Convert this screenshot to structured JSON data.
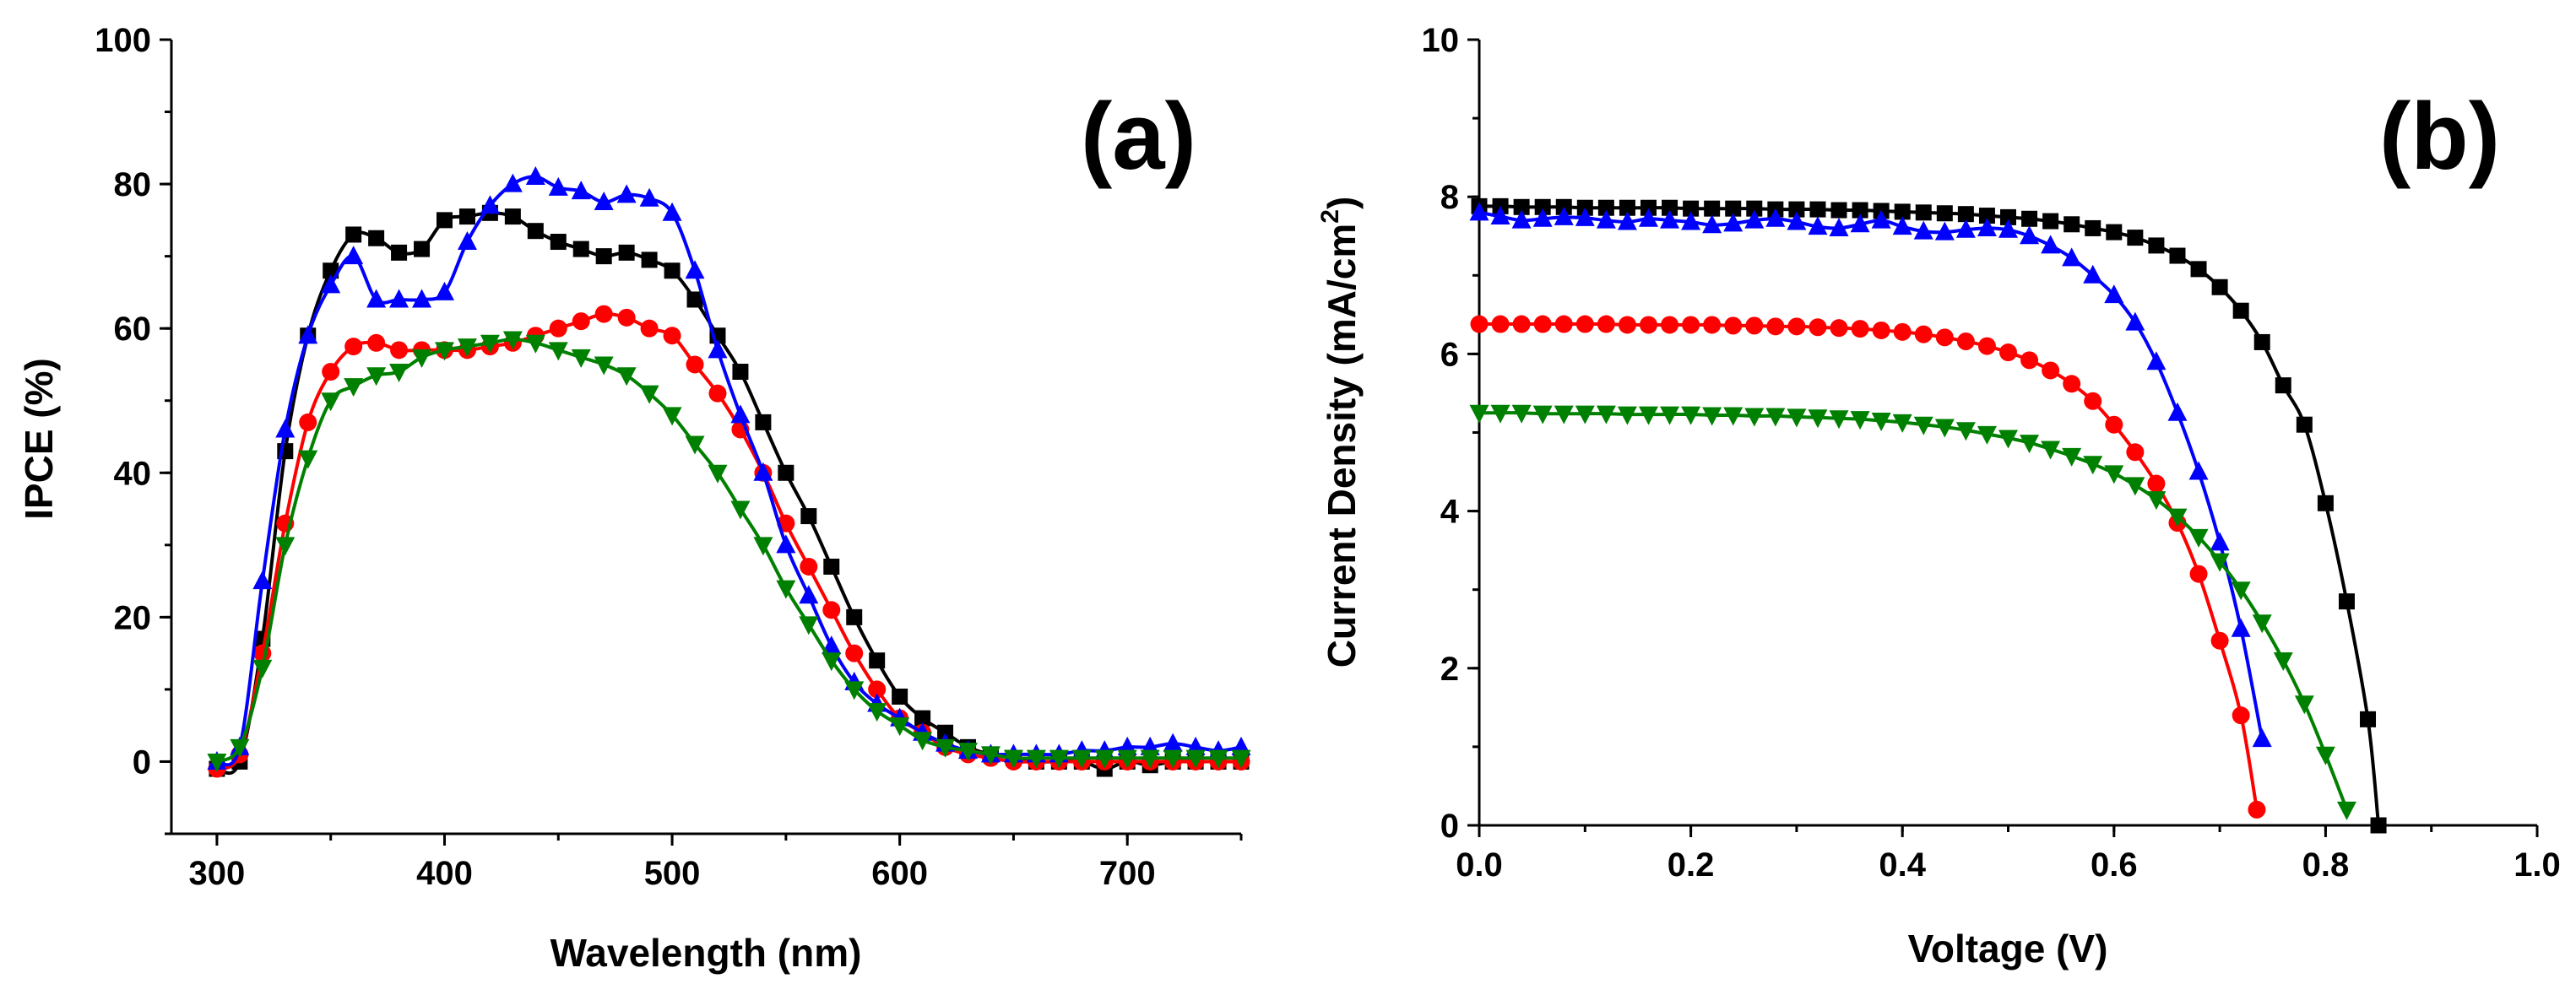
{
  "chart_data": [
    {
      "type": "line",
      "panel_label": "(a)",
      "title": "",
      "xlabel": "Wavelength (nm)",
      "ylabel": "IPCE (%)",
      "xlim": [
        280,
        750
      ],
      "ylim": [
        -10,
        100
      ],
      "xticks": [
        300,
        400,
        500,
        600,
        700
      ],
      "yticks": [
        0,
        20,
        40,
        60,
        80,
        100
      ],
      "grid": false,
      "series": [
        {
          "name": "black-square",
          "color": "#000000",
          "marker": "square",
          "x": [
            300,
            310,
            320,
            330,
            340,
            350,
            360,
            370,
            380,
            390,
            400,
            410,
            420,
            430,
            440,
            450,
            460,
            470,
            480,
            490,
            500,
            510,
            520,
            530,
            540,
            550,
            560,
            570,
            580,
            590,
            600,
            610,
            620,
            630,
            640,
            650,
            660,
            670,
            680,
            690,
            700,
            710,
            720,
            730,
            740,
            750
          ],
          "y": [
            -1,
            0,
            17,
            43,
            59,
            68,
            73,
            72.5,
            70.5,
            71,
            75,
            75.5,
            76,
            75.5,
            73.5,
            72,
            71,
            70,
            70.5,
            69.5,
            68,
            64,
            59,
            54,
            47,
            40,
            34,
            27,
            20,
            14,
            9,
            6,
            4,
            2,
            1,
            0.5,
            0,
            0,
            0,
            -1,
            0,
            -0.5,
            0,
            0,
            0,
            0
          ]
        },
        {
          "name": "red-circle",
          "color": "#ff0000",
          "marker": "circle",
          "x": [
            300,
            310,
            320,
            330,
            340,
            350,
            360,
            370,
            380,
            390,
            400,
            410,
            420,
            430,
            440,
            450,
            460,
            470,
            480,
            490,
            500,
            510,
            520,
            530,
            540,
            550,
            560,
            570,
            580,
            590,
            600,
            610,
            620,
            630,
            640,
            650,
            660,
            670,
            680,
            690,
            700,
            710,
            720,
            730,
            740,
            750
          ],
          "y": [
            -1,
            1,
            15,
            33,
            47,
            54,
            57.5,
            58,
            57,
            57,
            57,
            57,
            57.5,
            58,
            59,
            60,
            61,
            62,
            61.5,
            60,
            59,
            55,
            51,
            46,
            40,
            33,
            27,
            21,
            15,
            10,
            6,
            4,
            2,
            1,
            0.5,
            0,
            0,
            0,
            0,
            0,
            0,
            0,
            0,
            0,
            0,
            0
          ]
        },
        {
          "name": "blue-triangle-up",
          "color": "#0000ff",
          "marker": "triangle-up",
          "x": [
            300,
            310,
            320,
            330,
            340,
            350,
            360,
            370,
            380,
            390,
            400,
            410,
            420,
            430,
            440,
            450,
            460,
            470,
            480,
            490,
            500,
            510,
            520,
            530,
            540,
            550,
            560,
            570,
            580,
            590,
            600,
            610,
            620,
            630,
            640,
            650,
            660,
            670,
            680,
            690,
            700,
            710,
            720,
            730,
            740,
            750
          ],
          "y": [
            0,
            2,
            25,
            46,
            59,
            66,
            70,
            64,
            64,
            64,
            65,
            72,
            77,
            80,
            81,
            79.5,
            79,
            77.5,
            78.5,
            78,
            76,
            68,
            57,
            48,
            40,
            30,
            23,
            16,
            11,
            8,
            6,
            4,
            2.5,
            1.5,
            1,
            1,
            1,
            1,
            1.5,
            1.5,
            2,
            2,
            2.5,
            2,
            1.5,
            2
          ]
        },
        {
          "name": "green-triangle-down",
          "color": "#008000",
          "marker": "triangle-down",
          "x": [
            300,
            310,
            320,
            330,
            340,
            350,
            360,
            370,
            380,
            390,
            400,
            410,
            420,
            430,
            440,
            450,
            460,
            470,
            480,
            490,
            500,
            510,
            520,
            530,
            540,
            550,
            560,
            570,
            580,
            590,
            600,
            610,
            620,
            630,
            640,
            650,
            660,
            670,
            680,
            690,
            700,
            710,
            720,
            730,
            740,
            750
          ],
          "y": [
            0,
            2,
            13,
            30,
            42,
            50,
            52,
            53.5,
            54,
            56,
            57,
            57.5,
            58,
            58.5,
            58,
            57,
            56,
            55,
            53.5,
            51,
            48,
            44,
            40,
            35,
            30,
            24,
            19,
            14,
            10,
            7,
            5,
            3,
            2,
            1.5,
            1,
            0.5,
            0.5,
            0.5,
            0.5,
            0.5,
            0.5,
            0.5,
            0.5,
            0.5,
            0.5,
            0.5
          ]
        }
      ]
    },
    {
      "type": "line",
      "panel_label": "(b)",
      "title": "",
      "xlabel": "Voltage (V)",
      "ylabel_main": "Current Density (mA/cm",
      "ylabel_sup": "2",
      "ylabel_close": ")",
      "xlim": [
        0,
        1.0
      ],
      "ylim": [
        0,
        10
      ],
      "xticks": [
        "0.0",
        "0.2",
        "0.4",
        "0.6",
        "0.8",
        "1.0"
      ],
      "yticks": [
        0,
        2,
        4,
        6,
        8,
        10
      ],
      "grid": false,
      "series": [
        {
          "name": "black-square",
          "color": "#000000",
          "marker": "square",
          "x": [
            0,
            0.02,
            0.04,
            0.06,
            0.08,
            0.1,
            0.12,
            0.14,
            0.16,
            0.18,
            0.2,
            0.22,
            0.24,
            0.26,
            0.28,
            0.3,
            0.32,
            0.34,
            0.36,
            0.38,
            0.4,
            0.42,
            0.44,
            0.46,
            0.48,
            0.5,
            0.52,
            0.54,
            0.56,
            0.58,
            0.6,
            0.62,
            0.64,
            0.66,
            0.68,
            0.7,
            0.72,
            0.74,
            0.76,
            0.78,
            0.8,
            0.82,
            0.84,
            0.85
          ],
          "y": [
            7.88,
            7.88,
            7.87,
            7.87,
            7.87,
            7.86,
            7.86,
            7.86,
            7.86,
            7.86,
            7.85,
            7.85,
            7.85,
            7.85,
            7.84,
            7.84,
            7.84,
            7.83,
            7.83,
            7.82,
            7.81,
            7.8,
            7.79,
            7.78,
            7.76,
            7.74,
            7.72,
            7.69,
            7.65,
            7.6,
            7.55,
            7.48,
            7.38,
            7.25,
            7.08,
            6.85,
            6.55,
            6.15,
            5.6,
            5.1,
            4.1,
            2.85,
            1.35,
            0
          ]
        },
        {
          "name": "red-circle",
          "color": "#ff0000",
          "marker": "circle",
          "x": [
            0,
            0.02,
            0.04,
            0.06,
            0.08,
            0.1,
            0.12,
            0.14,
            0.16,
            0.18,
            0.2,
            0.22,
            0.24,
            0.26,
            0.28,
            0.3,
            0.32,
            0.34,
            0.36,
            0.38,
            0.4,
            0.42,
            0.44,
            0.46,
            0.48,
            0.5,
            0.52,
            0.54,
            0.56,
            0.58,
            0.6,
            0.62,
            0.64,
            0.66,
            0.68,
            0.7,
            0.72,
            0.735
          ],
          "y": [
            6.38,
            6.38,
            6.38,
            6.38,
            6.38,
            6.38,
            6.38,
            6.37,
            6.37,
            6.37,
            6.37,
            6.37,
            6.36,
            6.36,
            6.35,
            6.35,
            6.34,
            6.33,
            6.32,
            6.3,
            6.28,
            6.25,
            6.21,
            6.16,
            6.1,
            6.02,
            5.92,
            5.79,
            5.62,
            5.4,
            5.1,
            4.75,
            4.35,
            3.85,
            3.2,
            2.35,
            1.4,
            0.2
          ]
        },
        {
          "name": "blue-triangle-up",
          "color": "#0000ff",
          "marker": "triangle-up",
          "x": [
            0,
            0.02,
            0.04,
            0.06,
            0.08,
            0.1,
            0.12,
            0.14,
            0.16,
            0.18,
            0.2,
            0.22,
            0.24,
            0.26,
            0.28,
            0.3,
            0.32,
            0.34,
            0.36,
            0.38,
            0.4,
            0.42,
            0.44,
            0.46,
            0.48,
            0.5,
            0.52,
            0.54,
            0.56,
            0.58,
            0.6,
            0.62,
            0.64,
            0.66,
            0.68,
            0.7,
            0.72,
            0.74
          ],
          "y": [
            7.8,
            7.75,
            7.7,
            7.72,
            7.74,
            7.73,
            7.7,
            7.68,
            7.72,
            7.7,
            7.68,
            7.64,
            7.66,
            7.7,
            7.72,
            7.68,
            7.62,
            7.6,
            7.65,
            7.7,
            7.62,
            7.56,
            7.55,
            7.58,
            7.6,
            7.58,
            7.5,
            7.38,
            7.22,
            7.0,
            6.75,
            6.4,
            5.9,
            5.25,
            4.5,
            3.6,
            2.5,
            1.1
          ]
        },
        {
          "name": "green-triangle-down",
          "color": "#008000",
          "marker": "triangle-down",
          "x": [
            0,
            0.02,
            0.04,
            0.06,
            0.08,
            0.1,
            0.12,
            0.14,
            0.16,
            0.18,
            0.2,
            0.22,
            0.24,
            0.26,
            0.28,
            0.3,
            0.32,
            0.34,
            0.36,
            0.38,
            0.4,
            0.42,
            0.44,
            0.46,
            0.48,
            0.5,
            0.52,
            0.54,
            0.56,
            0.58,
            0.6,
            0.62,
            0.64,
            0.66,
            0.68,
            0.7,
            0.72,
            0.74,
            0.76,
            0.78,
            0.8,
            0.82
          ],
          "y": [
            5.25,
            5.25,
            5.25,
            5.24,
            5.24,
            5.24,
            5.24,
            5.23,
            5.23,
            5.23,
            5.23,
            5.22,
            5.22,
            5.21,
            5.21,
            5.2,
            5.19,
            5.18,
            5.17,
            5.15,
            5.13,
            5.1,
            5.07,
            5.03,
            4.98,
            4.93,
            4.87,
            4.79,
            4.7,
            4.6,
            4.48,
            4.33,
            4.15,
            3.93,
            3.67,
            3.36,
            3.0,
            2.58,
            2.1,
            1.55,
            0.9,
            0.2
          ]
        }
      ]
    }
  ]
}
